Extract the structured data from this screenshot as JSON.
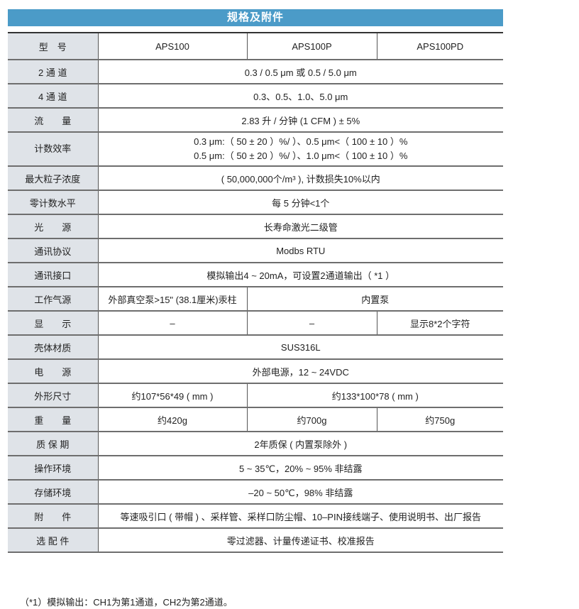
{
  "title": "规格及附件",
  "rows": [
    {
      "label": "型　号",
      "cells": [
        {
          "text": "APS100",
          "span": 1
        },
        {
          "text": "APS100P",
          "span": 1
        },
        {
          "text": "APS100PD",
          "span": 1
        }
      ]
    },
    {
      "label": "2 通 道",
      "cells": [
        {
          "text": "0.3 / 0.5 μm 或 0.5 / 5.0 μm",
          "span": 3
        }
      ]
    },
    {
      "label": "4 通 道",
      "cells": [
        {
          "text": "0.3、0.5、1.0、5.0 μm",
          "span": 3
        }
      ]
    },
    {
      "label": "流　　量",
      "cells": [
        {
          "text": "2.83 升 / 分钟 (1 CFM ) ± 5%",
          "span": 3
        }
      ]
    },
    {
      "label": "计数效率",
      "cells": [
        {
          "text": "0.3 μm:（ 50 ± 20 ）%/ ）、0.5 μm<（ 100 ± 10 ）%",
          "text2": "0.5 μm:（ 50 ± 20 ）%/ ）、1.0 μm<（ 100 ± 10 ）%",
          "span": 3
        }
      ]
    },
    {
      "label": "最大粒子浓度",
      "cells": [
        {
          "text": "( 50,000,000个/m³ ), 计数损失10%以内",
          "span": 3
        }
      ]
    },
    {
      "label": "零计数水平",
      "cells": [
        {
          "text": "每 5 分钟<1个",
          "span": 3
        }
      ]
    },
    {
      "label": "光　　源",
      "cells": [
        {
          "text": "长寿命激光二级管",
          "span": 3
        }
      ]
    },
    {
      "label": "通讯协议",
      "cells": [
        {
          "text": "Modbs RTU",
          "span": 3
        }
      ]
    },
    {
      "label": "通讯接口",
      "cells": [
        {
          "text": "模拟输出4 ~ 20mA，可设置2通道输出（ *1 ）",
          "span": 3
        }
      ]
    },
    {
      "label": "工作气源",
      "cells": [
        {
          "text": "外部真空泵>15\" (38.1厘米)汞柱",
          "span": 1
        },
        {
          "text": "内置泵",
          "span": 2
        }
      ]
    },
    {
      "label": "显　　示",
      "cells": [
        {
          "text": "–",
          "span": 1
        },
        {
          "text": "–",
          "span": 1
        },
        {
          "text": "显示8*2个字符",
          "span": 1
        }
      ]
    },
    {
      "label": "壳体材质",
      "cells": [
        {
          "text": "SUS316L",
          "span": 3
        }
      ]
    },
    {
      "label": "电　　源",
      "cells": [
        {
          "text": "外部电源，12 ~ 24VDC",
          "span": 3
        }
      ]
    },
    {
      "label": "外形尺寸",
      "cells": [
        {
          "text": "约107*56*49 ( mm )",
          "span": 1
        },
        {
          "text": "约133*100*78 ( mm )",
          "span": 2
        }
      ]
    },
    {
      "label": "重　　量",
      "cells": [
        {
          "text": "约420g",
          "span": 1
        },
        {
          "text": "约700g",
          "span": 1
        },
        {
          "text": "约750g",
          "span": 1
        }
      ]
    },
    {
      "label": "质 保 期",
      "cells": [
        {
          "text": "2年质保 ( 内置泵除外 )",
          "span": 3
        }
      ]
    },
    {
      "label": "操作环境",
      "cells": [
        {
          "text": "5 ~ 35℃，20% ~ 95% 非结露",
          "span": 3
        }
      ]
    },
    {
      "label": "存储环境",
      "cells": [
        {
          "text": "–20 ~ 50℃，98% 非结露",
          "span": 3
        }
      ]
    },
    {
      "label": "附　　件",
      "cells": [
        {
          "text": "等速吸引口 ( 带帽 ) 、采样管、采样口防尘帽、10–PIN接线端子、使用说明书、出厂报告",
          "span": 3
        }
      ]
    },
    {
      "label": "选 配 件",
      "cells": [
        {
          "text": "零过滤器、计量传递证书、校准报告",
          "span": 3
        }
      ]
    }
  ],
  "footnote": "（*1）模拟输出：CH1为第1通道，CH2为第2通道。"
}
